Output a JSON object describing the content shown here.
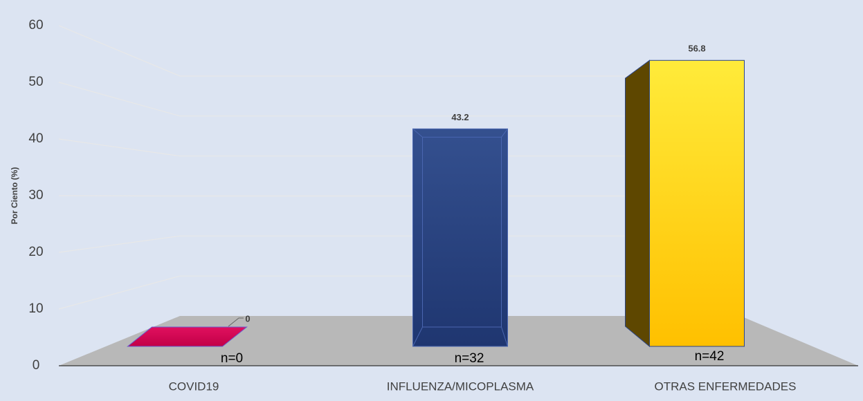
{
  "chart_data": {
    "type": "bar3d",
    "y_label": "Por Ciento (%)",
    "categories": [
      "COVID19",
      "INFLUENZA/MICOPLASMA",
      "OTRAS ENFERMEDADES"
    ],
    "values": [
      0,
      43.2,
      56.8
    ],
    "colors": [
      "#d4004f",
      "#2b4587",
      "#ffd21a"
    ],
    "annotations": [
      "n=0",
      "n=32",
      "n=42"
    ],
    "ylim": [
      0,
      60
    ],
    "yticks": [
      0,
      10,
      20,
      30,
      40,
      50,
      60
    ],
    "grid": true
  }
}
